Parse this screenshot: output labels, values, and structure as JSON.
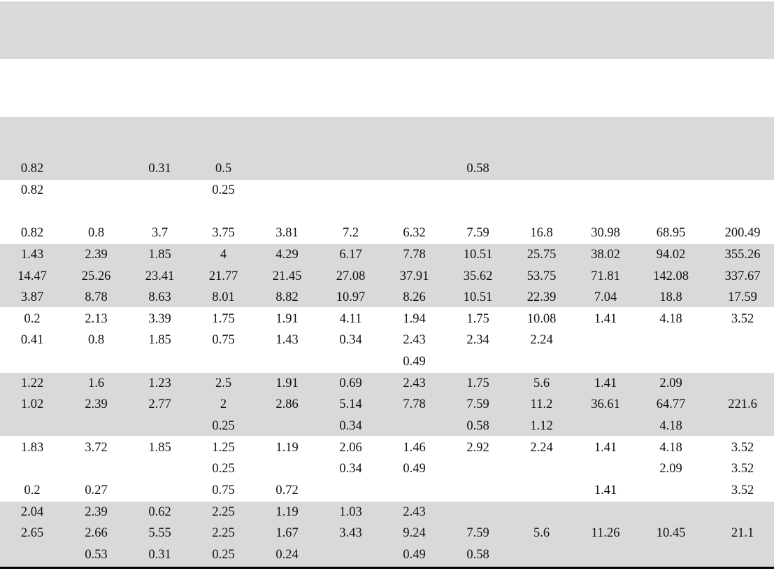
{
  "rows": [
    [
      "0.82",
      "",
      "0.31",
      "0.5",
      "",
      "",
      "",
      "0.58",
      "",
      "",
      "",
      ""
    ],
    [
      "0.82",
      "",
      "",
      "0.25",
      "",
      "",
      "",
      "",
      "",
      "",
      "",
      ""
    ],
    [
      "",
      "",
      "",
      "",
      "",
      "",
      "",
      "",
      "",
      "",
      "",
      ""
    ],
    [
      "0.82",
      "0.8",
      "3.7",
      "3.75",
      "3.81",
      "7.2",
      "6.32",
      "7.59",
      "16.8",
      "30.98",
      "68.95",
      "200.49"
    ],
    [
      "1.43",
      "2.39",
      "1.85",
      "4",
      "4.29",
      "6.17",
      "7.78",
      "10.51",
      "25.75",
      "38.02",
      "94.02",
      "355.26"
    ],
    [
      "14.47",
      "25.26",
      "23.41",
      "21.77",
      "21.45",
      "27.08",
      "37.91",
      "35.62",
      "53.75",
      "71.81",
      "142.08",
      "337.67"
    ],
    [
      "3.87",
      "8.78",
      "8.63",
      "8.01",
      "8.82",
      "10.97",
      "8.26",
      "10.51",
      "22.39",
      "7.04",
      "18.8",
      "17.59"
    ],
    [
      "0.2",
      "2.13",
      "3.39",
      "1.75",
      "1.91",
      "4.11",
      "1.94",
      "1.75",
      "10.08",
      "1.41",
      "4.18",
      "3.52"
    ],
    [
      "0.41",
      "0.8",
      "1.85",
      "0.75",
      "1.43",
      "0.34",
      "2.43",
      "2.34",
      "2.24",
      "",
      "",
      ""
    ],
    [
      "",
      "",
      "",
      "",
      "",
      "",
      "0.49",
      "",
      "",
      "",
      "",
      ""
    ],
    [
      "1.22",
      "1.6",
      "1.23",
      "2.5",
      "1.91",
      "0.69",
      "2.43",
      "1.75",
      "5.6",
      "1.41",
      "2.09",
      ""
    ],
    [
      "1.02",
      "2.39",
      "2.77",
      "2",
      "2.86",
      "5.14",
      "7.78",
      "7.59",
      "11.2",
      "36.61",
      "64.77",
      "221.6"
    ],
    [
      "",
      "",
      "",
      "0.25",
      "",
      "0.34",
      "",
      "0.58",
      "1.12",
      "",
      "4.18",
      ""
    ],
    [
      "1.83",
      "3.72",
      "1.85",
      "1.25",
      "1.19",
      "2.06",
      "1.46",
      "2.92",
      "2.24",
      "1.41",
      "4.18",
      "3.52"
    ],
    [
      "",
      "",
      "",
      "0.25",
      "",
      "0.34",
      "0.49",
      "",
      "",
      "",
      "2.09",
      "3.52"
    ],
    [
      "0.2",
      "0.27",
      "",
      "0.75",
      "0.72",
      "",
      "",
      "",
      "",
      "1.41",
      "",
      "3.52"
    ],
    [
      "2.04",
      "2.39",
      "0.62",
      "2.25",
      "1.19",
      "1.03",
      "2.43",
      "",
      "",
      "",
      "",
      ""
    ],
    [
      "2.65",
      "2.66",
      "5.55",
      "2.25",
      "1.67",
      "3.43",
      "9.24",
      "7.59",
      "5.6",
      "11.26",
      "10.45",
      "21.1"
    ],
    [
      "",
      "0.53",
      "0.31",
      "0.25",
      "0.24",
      "",
      "0.49",
      "0.58",
      "",
      "",
      "",
      ""
    ]
  ]
}
